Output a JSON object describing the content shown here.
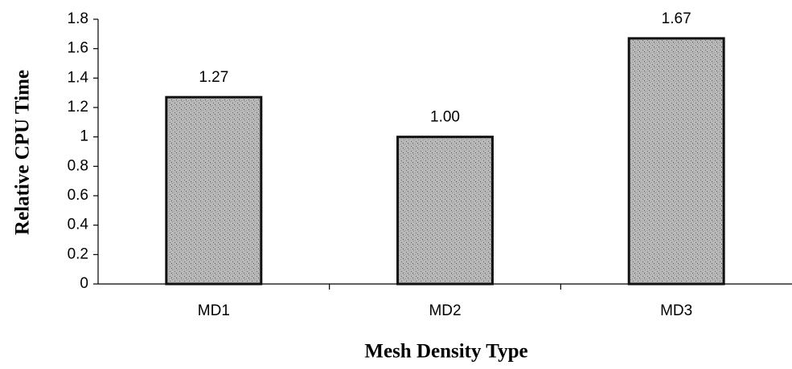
{
  "chart_data": {
    "type": "bar",
    "categories": [
      "MD1",
      "MD2",
      "MD3"
    ],
    "values": [
      1.27,
      1.0,
      1.67
    ],
    "value_labels": [
      "1.27",
      "1.00",
      "1.67"
    ],
    "color": "#b8b8b8",
    "x_label": "Mesh Density Type",
    "y_label": "Relative CPU Time",
    "ylim": [
      0,
      1.8
    ],
    "yticks": [
      0,
      0.2,
      0.4,
      0.6,
      0.8,
      1,
      1.2,
      1.4,
      1.6,
      1.8
    ],
    "grid": false
  }
}
